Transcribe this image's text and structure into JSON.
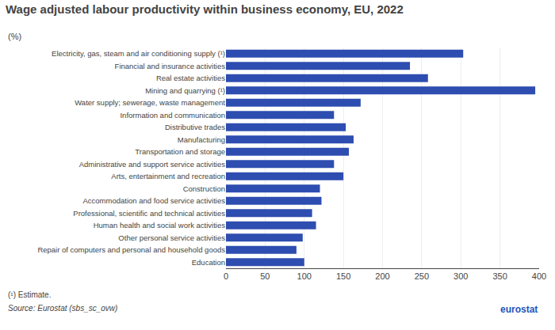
{
  "chart_data": {
    "type": "bar",
    "orientation": "horizontal",
    "title": "Wage adjusted labour productivity within business economy, EU, 2022",
    "subtitle": "(%)",
    "categories": [
      "Education",
      "Repair of computers and personal and household goods",
      "Other personal service activities",
      "Human health and social work activities",
      "Professional, scientific and technical activities",
      "Accommodation and food service activities",
      "Construction",
      "Arts, entertainment and recreation",
      "Administrative and support service activities",
      "Transportation and storage",
      "Manufacturing",
      "Distributive trades",
      "Information and communication",
      "Water supply; sewerage, waste management",
      "Mining and quarrying (¹)",
      "Real estate activities",
      "Financial and insurance activities",
      "Electricity, gas, steam and air conditioning supply (¹)"
    ],
    "values": [
      100,
      90,
      98,
      115,
      110,
      122,
      120,
      150,
      138,
      157,
      163,
      153,
      138,
      172,
      395,
      258,
      235,
      303
    ],
    "color": "#2E4DB0",
    "xlim": [
      0,
      400
    ],
    "xticks": [
      0,
      50,
      100,
      150,
      200,
      250,
      300,
      350,
      400
    ],
    "grid": true,
    "annotations": [
      "(¹) Estimate.",
      "Source: Eurostat (sbs_sc_ovw)",
      "eurostat"
    ]
  }
}
